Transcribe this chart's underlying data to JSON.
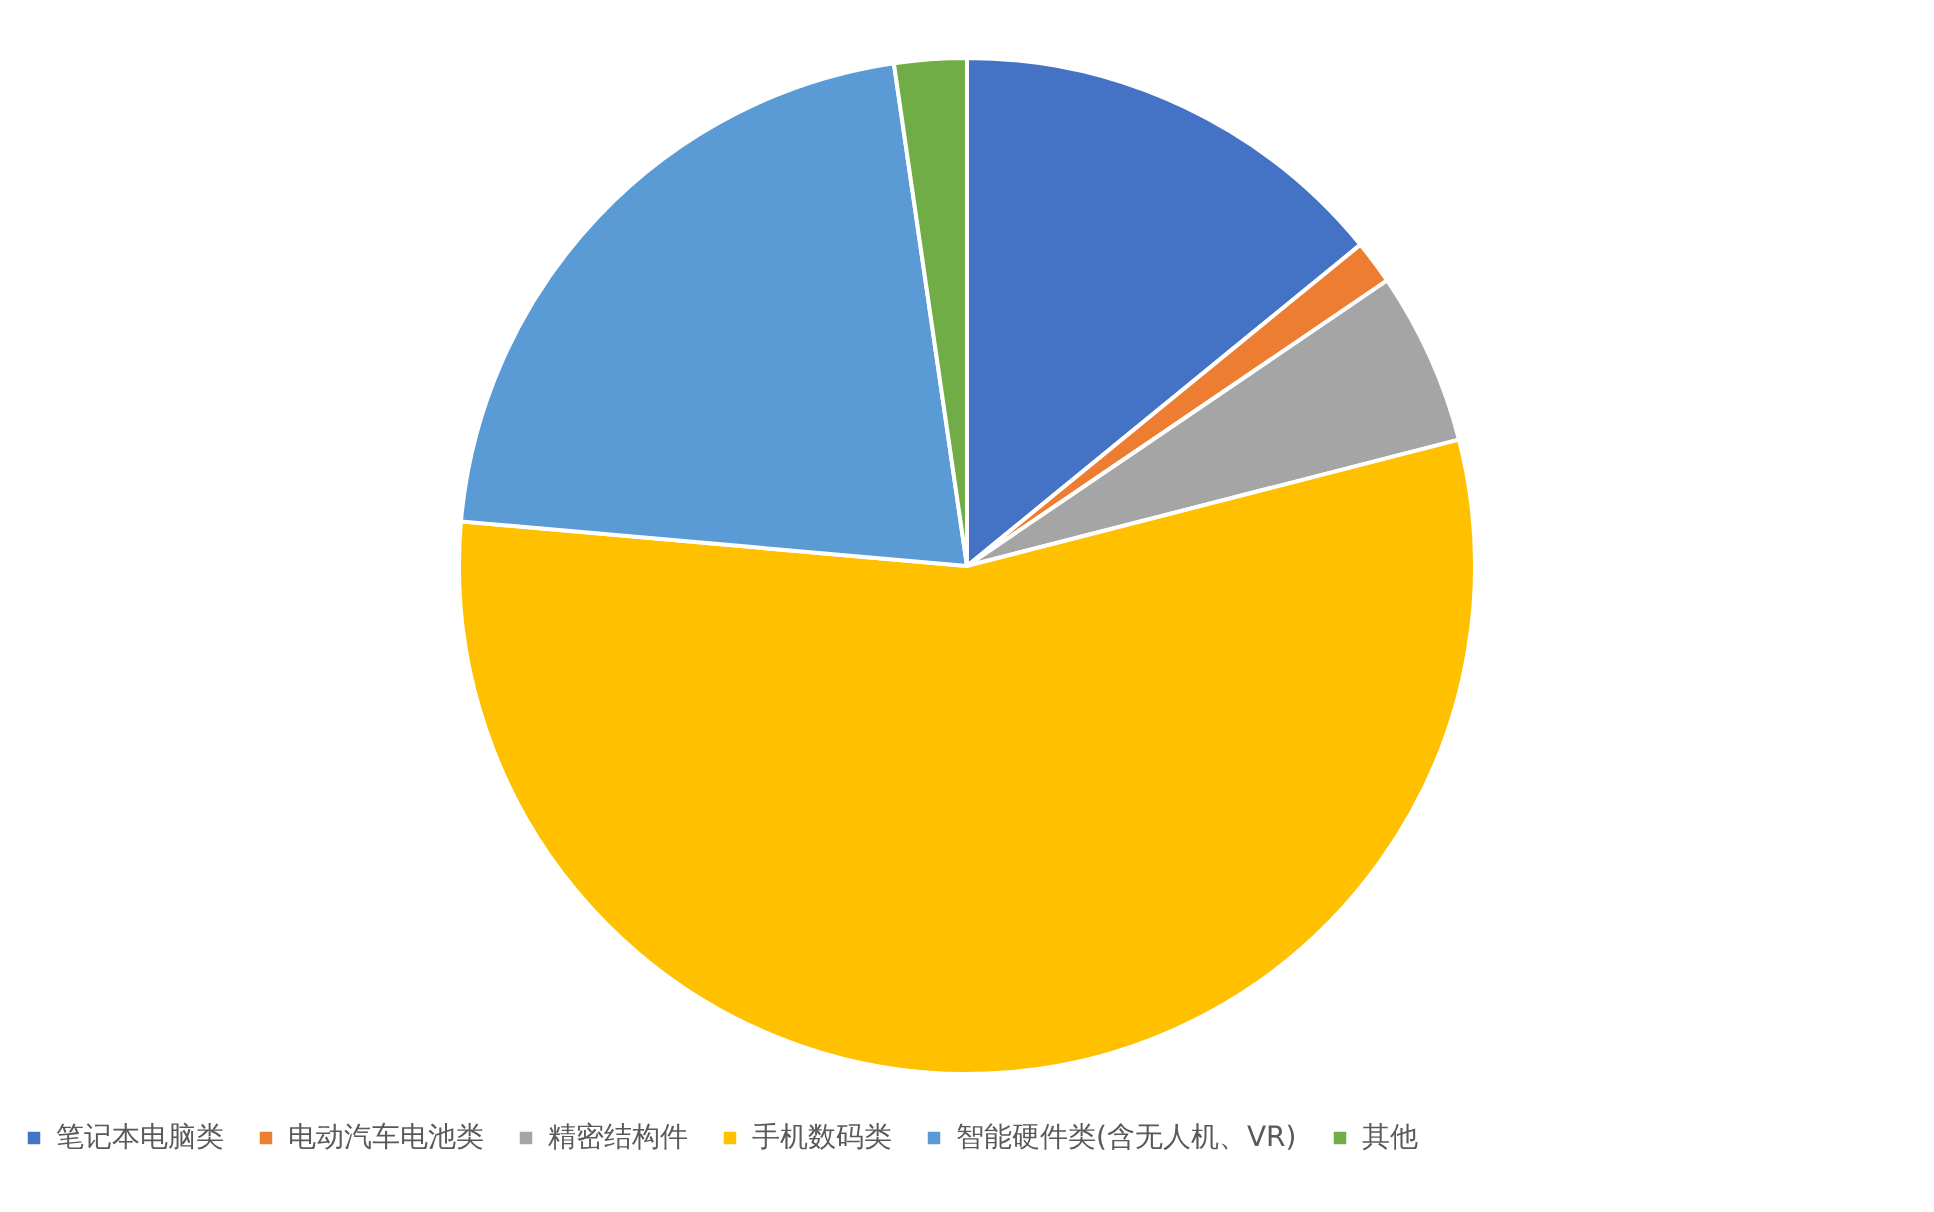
{
  "chart_data": {
    "type": "pie",
    "categories": [
      "笔记本电脑类",
      "电动汽车电池类",
      "精密结构件",
      "手机数码类",
      "智能硬件类(含无人机、VR)",
      "其他"
    ],
    "values": [
      14.1,
      1.4,
      5.5,
      55.4,
      21.3,
      2.3
    ],
    "colors": [
      "#4472c4",
      "#ed7d31",
      "#a5a5a5",
      "#ffc000",
      "#5b9bd5",
      "#70ad47"
    ],
    "legend": "bottom"
  }
}
